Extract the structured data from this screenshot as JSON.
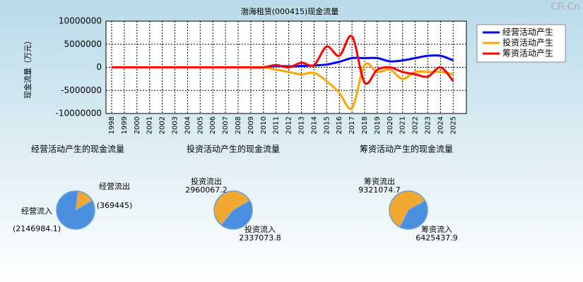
{
  "watermark": "CFi.Cn",
  "chart_data": [
    {
      "type": "line",
      "title": "渤海租赁(000415)现金流量",
      "y_label": "现金流量（万元）",
      "categories": [
        "1998",
        "1999",
        "2000",
        "2001",
        "2002",
        "2003",
        "2004",
        "2005",
        "2006",
        "2007",
        "2008",
        "2009",
        "2010",
        "2011",
        "2012",
        "2013",
        "2014",
        "2015",
        "2016",
        "2017",
        "2018",
        "2019",
        "2020",
        "2021",
        "2022",
        "2023",
        "2024",
        "2025"
      ],
      "series": [
        {
          "name": "经营活动产生",
          "color": "#0000ff",
          "values": [
            0,
            0,
            0,
            0,
            0,
            0,
            0,
            0,
            0,
            0,
            0,
            0,
            0,
            300000,
            200000,
            300000,
            400000,
            600000,
            1200000,
            2000000,
            2000000,
            2000000,
            1300000,
            1500000,
            2000000,
            2500000,
            2500000,
            1500000
          ]
        },
        {
          "name": "投资活动产生",
          "color": "#ffa500",
          "values": [
            0,
            0,
            0,
            0,
            0,
            0,
            0,
            0,
            0,
            0,
            0,
            0,
            0,
            -500000,
            -1000000,
            -1500000,
            -1200000,
            -3000000,
            -5500000,
            -8800000,
            500000,
            -1000000,
            -500000,
            -2500000,
            -1000000,
            -1000000,
            -1000000,
            -1500000
          ]
        },
        {
          "name": "筹资活动产生",
          "color": "#ff0000",
          "values": [
            0,
            0,
            0,
            0,
            0,
            0,
            0,
            0,
            0,
            0,
            0,
            0,
            0,
            500000,
            0,
            1000000,
            500000,
            4500000,
            2500000,
            6700000,
            -3300000,
            -500000,
            0,
            -1000000,
            -1500000,
            -2000000,
            0,
            -3000000
          ]
        }
      ],
      "ylim": [
        -10000000,
        10000000
      ],
      "yticks": [
        10000000,
        5000000,
        0,
        -5000000,
        -10000000
      ],
      "grid": true,
      "legend": "right"
    },
    {
      "type": "pie",
      "title": "经营活动产生的现金流量",
      "categories": [
        "经营流入",
        "经营流出"
      ],
      "values": [
        2146984.1,
        369445
      ],
      "value_labels": [
        "(2146984.1)",
        "(369445)"
      ],
      "colors": [
        "#4a8fe0",
        "#f0a830"
      ]
    },
    {
      "type": "pie",
      "title": "投资活动产生的现金流量",
      "categories": [
        "投资流入",
        "投资流出"
      ],
      "values": [
        2337073.8,
        2960067.2
      ],
      "colors": [
        "#4a8fe0",
        "#f0a830"
      ]
    },
    {
      "type": "pie",
      "title": "筹资活动产生的现金流量",
      "categories": [
        "筹资流入",
        "筹资流出"
      ],
      "values": [
        6425437.9,
        9321074.7
      ],
      "colors": [
        "#4a8fe0",
        "#f0a830"
      ]
    }
  ]
}
